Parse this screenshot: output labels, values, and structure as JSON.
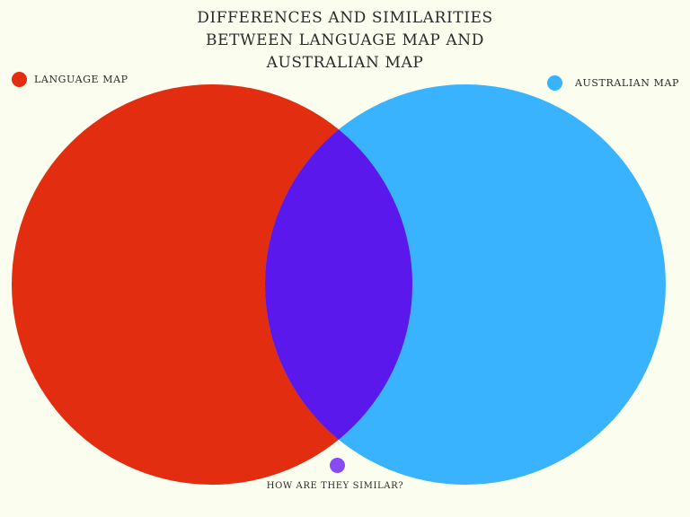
{
  "title": {
    "line1": "DIFFERENCES AND SIMILARITIES",
    "line2": "BETWEEN LANGUAGE MAP AND",
    "line3": "AUSTRALIAN MAP"
  },
  "legend": {
    "left_label": "LANGUAGE MAP",
    "right_label": "AUSTRALIAN MAP"
  },
  "intersection_label": "HOW ARE THEY SIMILAR?",
  "colors": {
    "background": "#fbfdef",
    "language_map": "#e22d10",
    "australian_map": "#3ab3fe",
    "overlap": "#5b18ec",
    "similar_dot": "#8a4cf2"
  }
}
